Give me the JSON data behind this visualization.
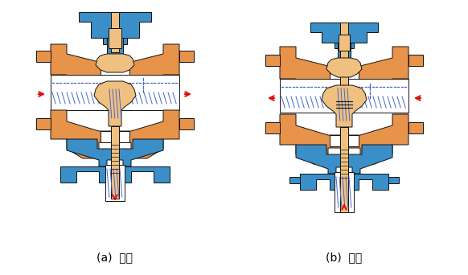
{
  "title_a": "(a)  分流",
  "title_b": "(b)  合流",
  "bg_color": "#ffffff",
  "orange": "#E8934A",
  "tan": "#F0C080",
  "blue": "#3A8FC8",
  "red": "#DD1111",
  "hdot": "#4466CC",
  "black": "#111111",
  "lw": 0.7,
  "font_size": 10
}
